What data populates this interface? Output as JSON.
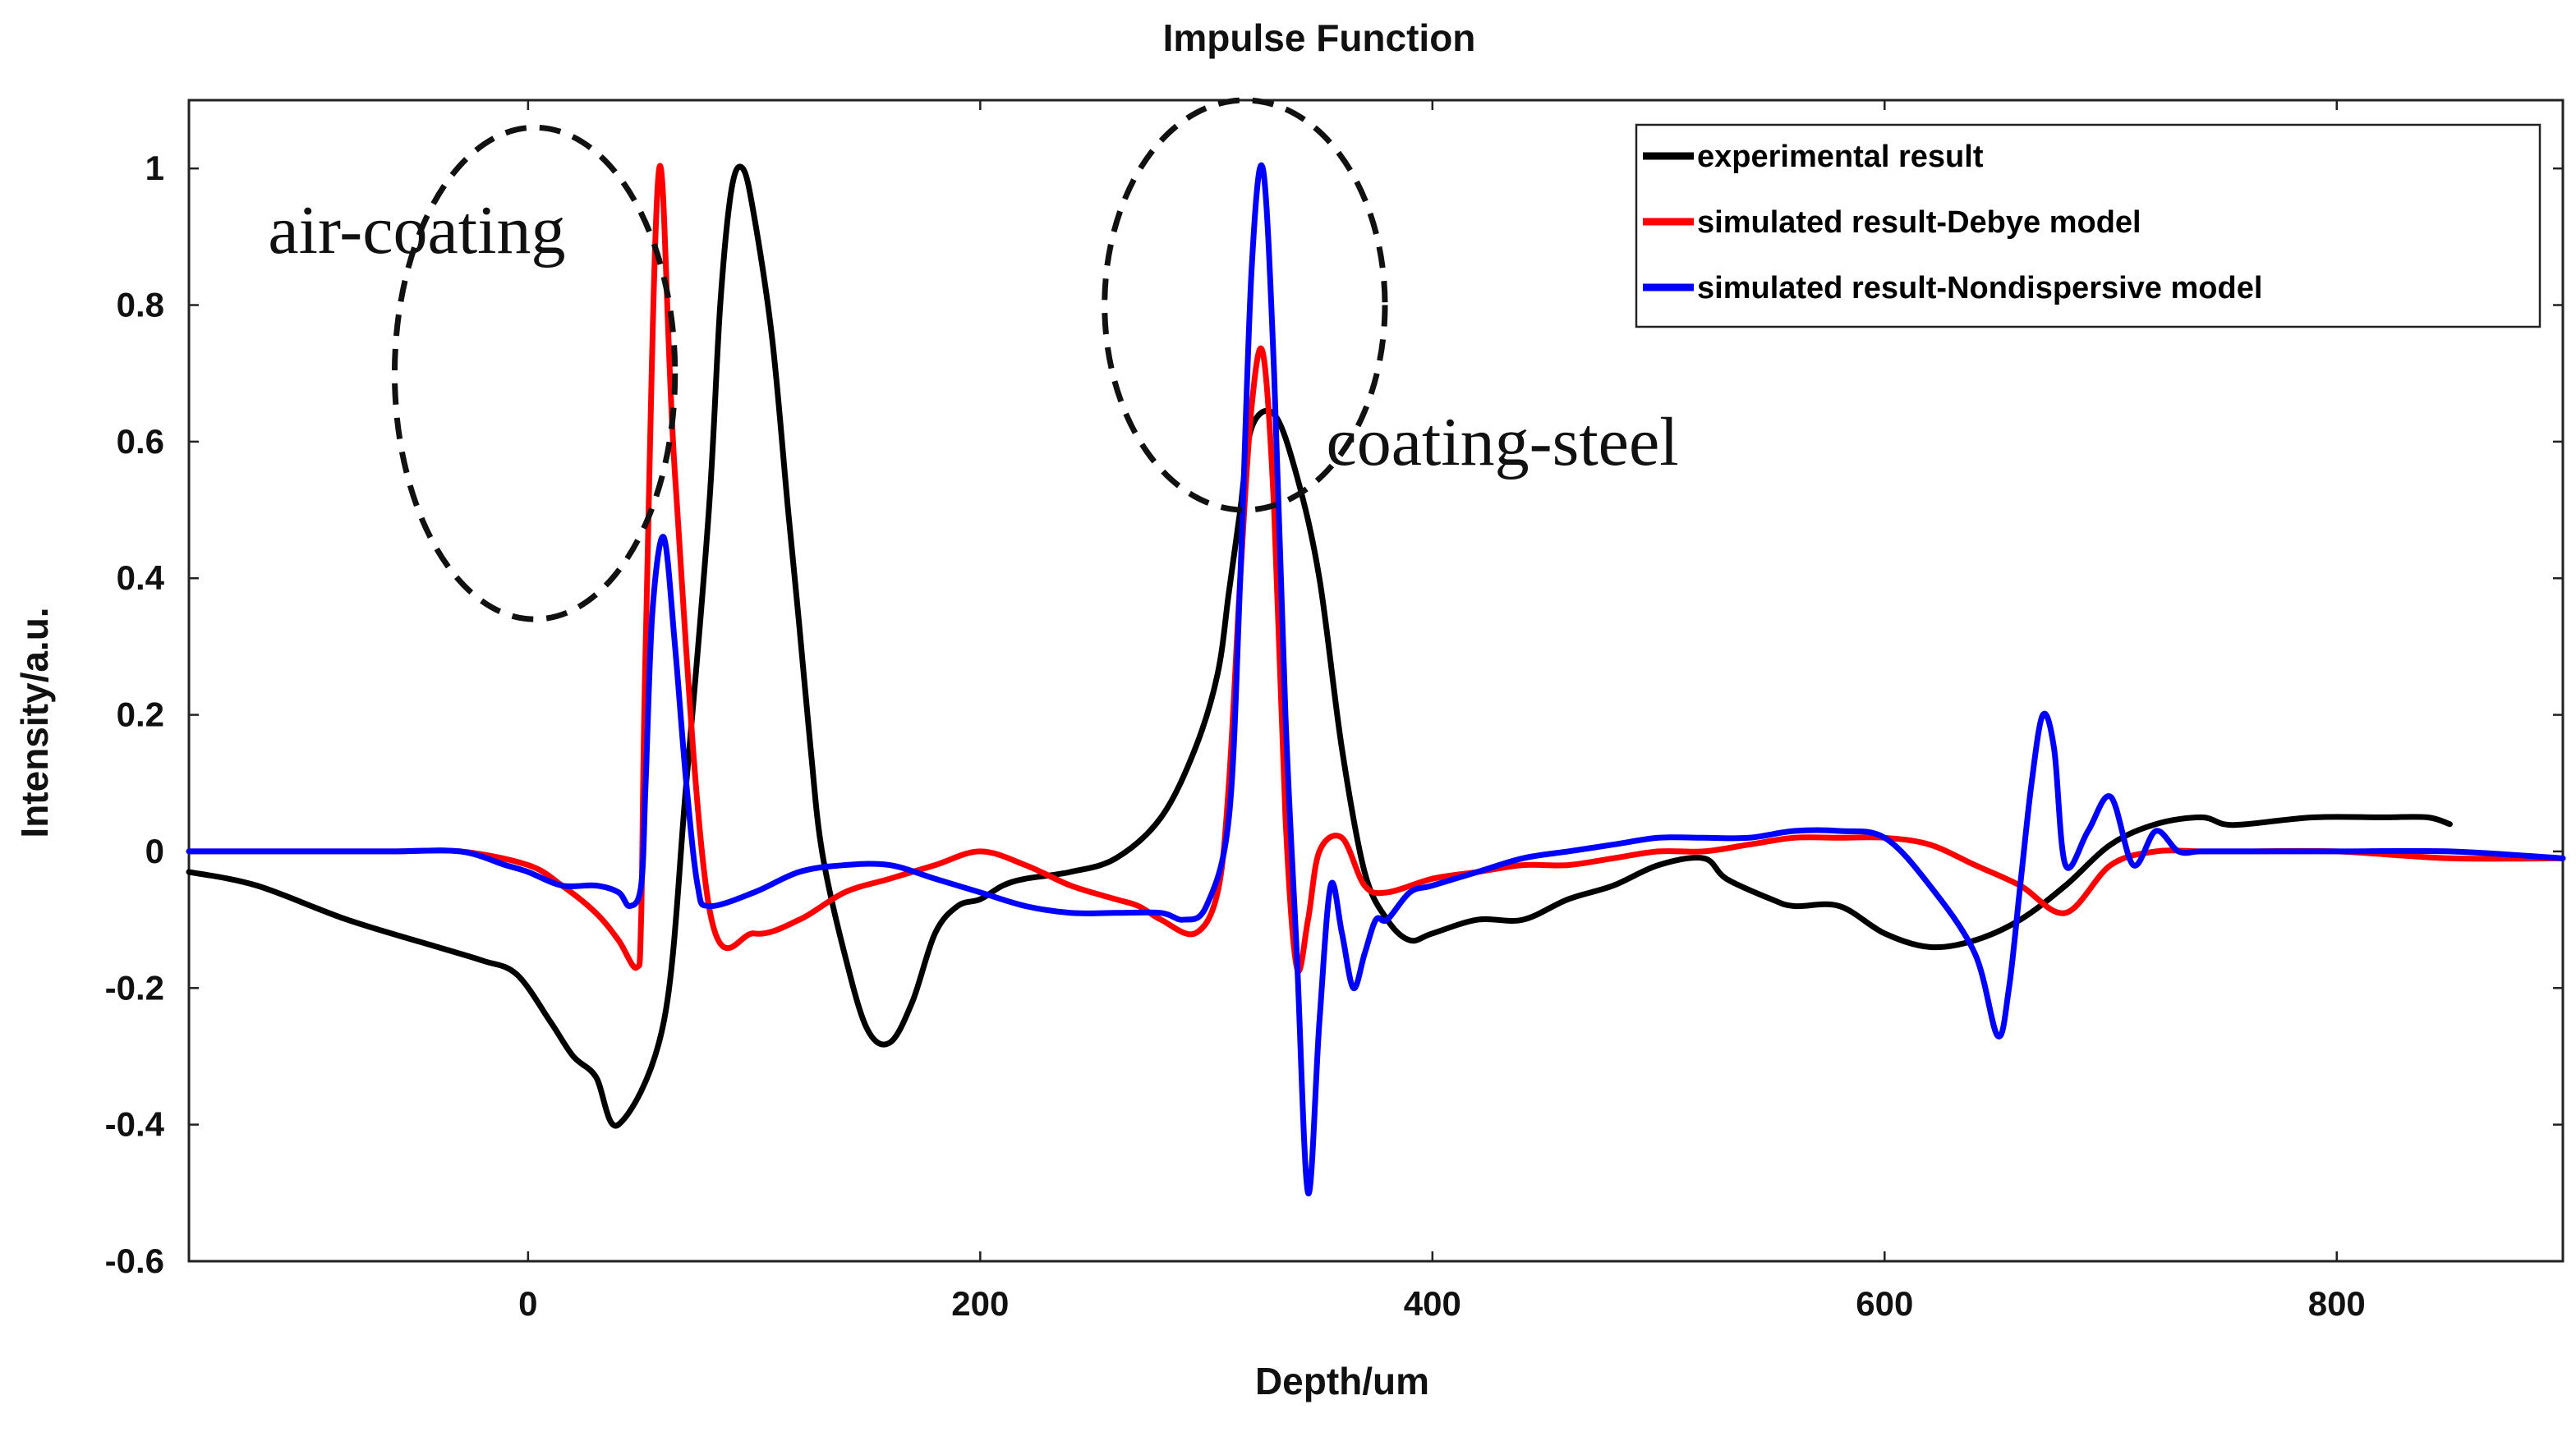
{
  "chart_data": {
    "type": "line",
    "title": "Impulse Function",
    "xlabel": "Depth/um",
    "ylabel": "Intensity/a.u.",
    "xlim": [
      -150,
      900
    ],
    "ylim": [
      -0.6,
      1.1
    ],
    "xticks": [
      0,
      200,
      400,
      600,
      800
    ],
    "xtick_labels": [
      "0",
      "200",
      "400",
      "600",
      "800"
    ],
    "yticks": [
      1,
      0.8,
      0.6,
      0.4,
      0.2,
      0,
      -0.2,
      -0.4,
      -0.6
    ],
    "ytick_labels": [
      "1",
      "0.8",
      "0.6",
      "0.4",
      "0.2",
      "0",
      "-0.2",
      "-0.4",
      "-0.6"
    ],
    "grid": false,
    "legend_position": "top-right",
    "series": [
      {
        "name": "experimental result",
        "color": "#000000",
        "x": [
          -150,
          -120,
          -80,
          -40,
          -20,
          -5,
          10,
          20,
          30,
          40,
          60,
          70,
          80,
          85,
          90,
          95,
          100,
          108,
          115,
          120,
          125,
          130,
          140,
          150,
          160,
          170,
          180,
          190,
          200,
          210,
          220,
          240,
          260,
          280,
          295,
          305,
          310,
          315,
          320,
          330,
          340,
          350,
          360,
          370,
          380,
          390,
          400,
          420,
          440,
          460,
          480,
          500,
          520,
          530,
          550,
          560,
          580,
          600,
          620,
          640,
          660,
          680,
          700,
          720,
          740,
          750,
          760,
          790,
          820,
          840,
          850
        ],
        "y": [
          -0.03,
          -0.05,
          -0.1,
          -0.14,
          -0.16,
          -0.18,
          -0.25,
          -0.3,
          -0.33,
          -0.4,
          -0.25,
          0.1,
          0.5,
          0.8,
          0.97,
          1.0,
          0.93,
          0.75,
          0.5,
          0.33,
          0.15,
          0.0,
          -0.15,
          -0.26,
          -0.28,
          -0.22,
          -0.12,
          -0.08,
          -0.07,
          -0.05,
          -0.04,
          -0.03,
          -0.01,
          0.05,
          0.15,
          0.26,
          0.38,
          0.5,
          0.62,
          0.64,
          0.55,
          0.4,
          0.15,
          -0.03,
          -0.1,
          -0.13,
          -0.12,
          -0.1,
          -0.1,
          -0.07,
          -0.05,
          -0.02,
          -0.01,
          -0.04,
          -0.07,
          -0.08,
          -0.08,
          -0.12,
          -0.14,
          -0.13,
          -0.1,
          -0.05,
          0.01,
          0.04,
          0.05,
          0.04,
          0.04,
          0.05,
          0.05,
          0.05,
          0.04
        ]
      },
      {
        "name": "simulated result-Debye model",
        "color": "#ff0000",
        "x": [
          -150,
          -100,
          -60,
          -30,
          0,
          15,
          30,
          40,
          48,
          50,
          52,
          58,
          65,
          80,
          100,
          120,
          140,
          160,
          180,
          200,
          220,
          240,
          260,
          270,
          280,
          295,
          305,
          310,
          315,
          320,
          325,
          330,
          335,
          340,
          345,
          350,
          360,
          370,
          380,
          400,
          420,
          440,
          460,
          480,
          500,
          520,
          540,
          560,
          580,
          600,
          620,
          640,
          660,
          680,
          700,
          720,
          740,
          760,
          800,
          850,
          900
        ],
        "y": [
          0.0,
          0.0,
          0.0,
          0.0,
          -0.02,
          -0.05,
          -0.09,
          -0.13,
          -0.17,
          -0.1,
          0.3,
          1.0,
          0.55,
          -0.08,
          -0.12,
          -0.1,
          -0.06,
          -0.04,
          -0.02,
          0.0,
          -0.02,
          -0.05,
          -0.07,
          -0.08,
          -0.1,
          -0.12,
          -0.06,
          0.1,
          0.4,
          0.65,
          0.73,
          0.5,
          0.05,
          -0.17,
          -0.1,
          0.0,
          0.02,
          -0.05,
          -0.06,
          -0.04,
          -0.03,
          -0.02,
          -0.02,
          -0.01,
          0.0,
          0.0,
          0.01,
          0.02,
          0.02,
          0.02,
          0.01,
          -0.02,
          -0.05,
          -0.09,
          -0.02,
          0.0,
          0.0,
          0.0,
          0.0,
          -0.01,
          -0.01
        ]
      },
      {
        "name": "simulated result-Nondispersive model",
        "color": "#0000ff",
        "x": [
          -150,
          -100,
          -60,
          -30,
          -10,
          0,
          15,
          30,
          40,
          45,
          50,
          52,
          55,
          60,
          65,
          70,
          75,
          80,
          100,
          120,
          140,
          160,
          180,
          200,
          220,
          240,
          260,
          280,
          290,
          300,
          310,
          315,
          320,
          325,
          330,
          335,
          340,
          345,
          350,
          355,
          360,
          365,
          370,
          375,
          380,
          390,
          400,
          420,
          440,
          460,
          480,
          500,
          520,
          540,
          560,
          580,
          600,
          620,
          640,
          650,
          655,
          660,
          665,
          670,
          675,
          680,
          690,
          700,
          710,
          720,
          730,
          740,
          760,
          800,
          850,
          900
        ],
        "y": [
          0.0,
          0.0,
          0.0,
          0.0,
          -0.02,
          -0.03,
          -0.05,
          -0.05,
          -0.06,
          -0.08,
          -0.05,
          0.1,
          0.35,
          0.46,
          0.3,
          0.1,
          -0.05,
          -0.08,
          -0.06,
          -0.03,
          -0.02,
          -0.02,
          -0.04,
          -0.06,
          -0.08,
          -0.09,
          -0.09,
          -0.09,
          -0.1,
          -0.08,
          0.05,
          0.4,
          0.85,
          1.0,
          0.7,
          0.2,
          -0.15,
          -0.5,
          -0.25,
          -0.05,
          -0.12,
          -0.2,
          -0.15,
          -0.1,
          -0.1,
          -0.06,
          -0.05,
          -0.03,
          -0.01,
          0.0,
          0.01,
          0.02,
          0.02,
          0.02,
          0.03,
          0.03,
          0.02,
          -0.05,
          -0.15,
          -0.27,
          -0.2,
          -0.05,
          0.1,
          0.2,
          0.15,
          -0.02,
          0.03,
          0.08,
          -0.02,
          0.03,
          0.0,
          0.0,
          0.0,
          0.0,
          0.0,
          -0.01
        ]
      }
    ],
    "annotations": [
      {
        "text": "air-coating",
        "x": -115,
        "y": 0.91
      },
      {
        "text": "coating-steel",
        "x": 353,
        "y": 0.6
      }
    ],
    "highlight_ellipses": [
      {
        "name": "air-coating-peak",
        "cx": 3,
        "cy": 0.7,
        "rx": 62,
        "ry": 0.36
      },
      {
        "name": "coating-steel-peak",
        "cx": 317,
        "cy": 0.8,
        "rx": 62,
        "ry": 0.3
      }
    ]
  }
}
